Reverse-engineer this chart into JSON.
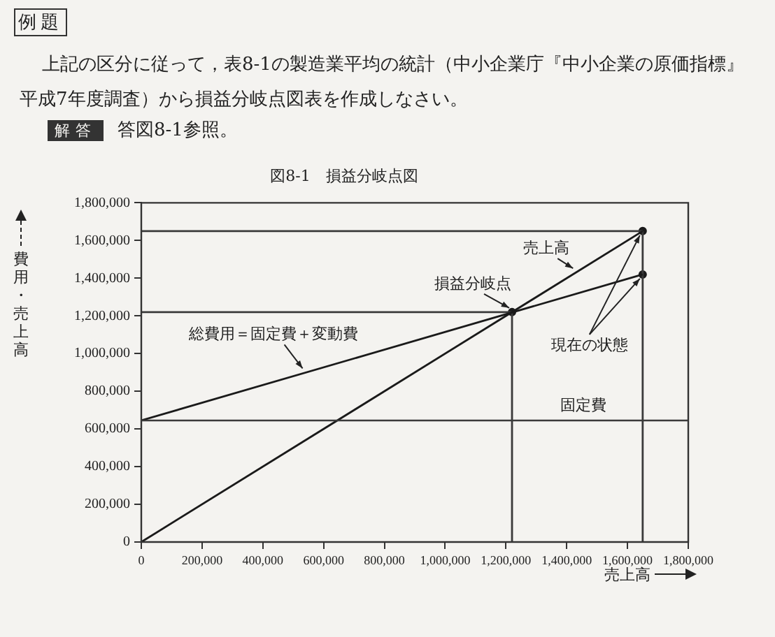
{
  "chart_data": {
    "type": "line",
    "title": "図8-1　損益分岐点図",
    "xlabel": "売上高",
    "ylabel": "費用・売上高",
    "xlim": [
      0,
      1800000
    ],
    "xticks": [
      0,
      {
        "value": 200000,
        "label": "200,000"
      },
      {
        "value": 400000,
        "label": "400,000"
      },
      {
        "value": 600000,
        "label": "600,000"
      },
      {
        "value": 800000,
        "label": "800,000"
      },
      {
        "value": 1000000,
        "label": "1,000,000"
      },
      {
        "value": 1200000,
        "label": "1,200,000"
      },
      {
        "value": 1400000,
        "label": "1,400,000"
      },
      {
        "value": 1600000,
        "label": "1,600,000"
      },
      {
        "value": 1800000,
        "label": "1,800,000"
      }
    ],
    "ylim": [
      0,
      1800000
    ],
    "yticks": [
      0,
      {
        "value": 200000,
        "label": "200,000"
      },
      {
        "value": 400000,
        "label": "400,000"
      },
      {
        "value": 600000,
        "label": "600,000"
      },
      {
        "value": 800000,
        "label": "800,000"
      },
      {
        "value": 1000000,
        "label": "1,000,000"
      },
      {
        "value": 1200000,
        "label": "1,200,000"
      },
      {
        "value": 1400000,
        "label": "1,400,000"
      },
      {
        "value": 1600000,
        "label": "1,600,000"
      },
      {
        "value": 1800000,
        "label": "1,800,000"
      }
    ],
    "grid": false,
    "series": [
      {
        "color": "#1a1a1a",
        "x": [
          0,
          1650000
        ],
        "values": [
          0,
          1650000
        ]
      },
      {
        "color": "#1a1a1a",
        "x": [
          0,
          1650000
        ],
        "values": [
          645000,
          1420000
        ]
      },
      {
        "color": "#3a3a3a",
        "x": [
          0,
          1650000
        ],
        "values": [
          1650000,
          1650000
        ]
      },
      {
        "color": "#3a3a3a",
        "x": [
          0,
          1220000
        ],
        "values": [
          1220000,
          1220000
        ]
      },
      {
        "color": "#3a3a3a",
        "x": [
          1220000,
          1220000
        ],
        "values": [
          0,
          1220000
        ]
      },
      {
        "color": "#3a3a3a",
        "x": [
          1650000,
          1650000
        ],
        "values": [
          0,
          1650000
        ]
      },
      {
        "type": "scatter",
        "color": "#1a1a1a",
        "x": [
          1220000,
          1650000,
          1650000
        ],
        "values": [
          1220000,
          1650000,
          1420000
        ]
      }
    ],
    "ref_lines": [
      {
        "axis": "y",
        "value": 645000,
        "label": "固定費",
        "color": "#3a3a3a"
      }
    ],
    "annotations": [
      "例題",
      "上記の区分に従って，表8-1の製造業平均の統計（中小企業庁『中小企業の原価指標』平成7年度調査）から損益分岐点図表を作成しなさい。",
      "解答",
      "答図8-1参照。",
      {
        "text": "損益分岐点",
        "x": 1220000,
        "y": 1220000
      },
      {
        "text": "売上高",
        "x": 1430000,
        "y": 1430000
      },
      {
        "text": "総費用＝固定費＋変動費",
        "x": 540000,
        "y": 899000
      },
      {
        "text": "現在の状態",
        "x": 1650000,
        "y": 1420000
      }
    ]
  }
}
